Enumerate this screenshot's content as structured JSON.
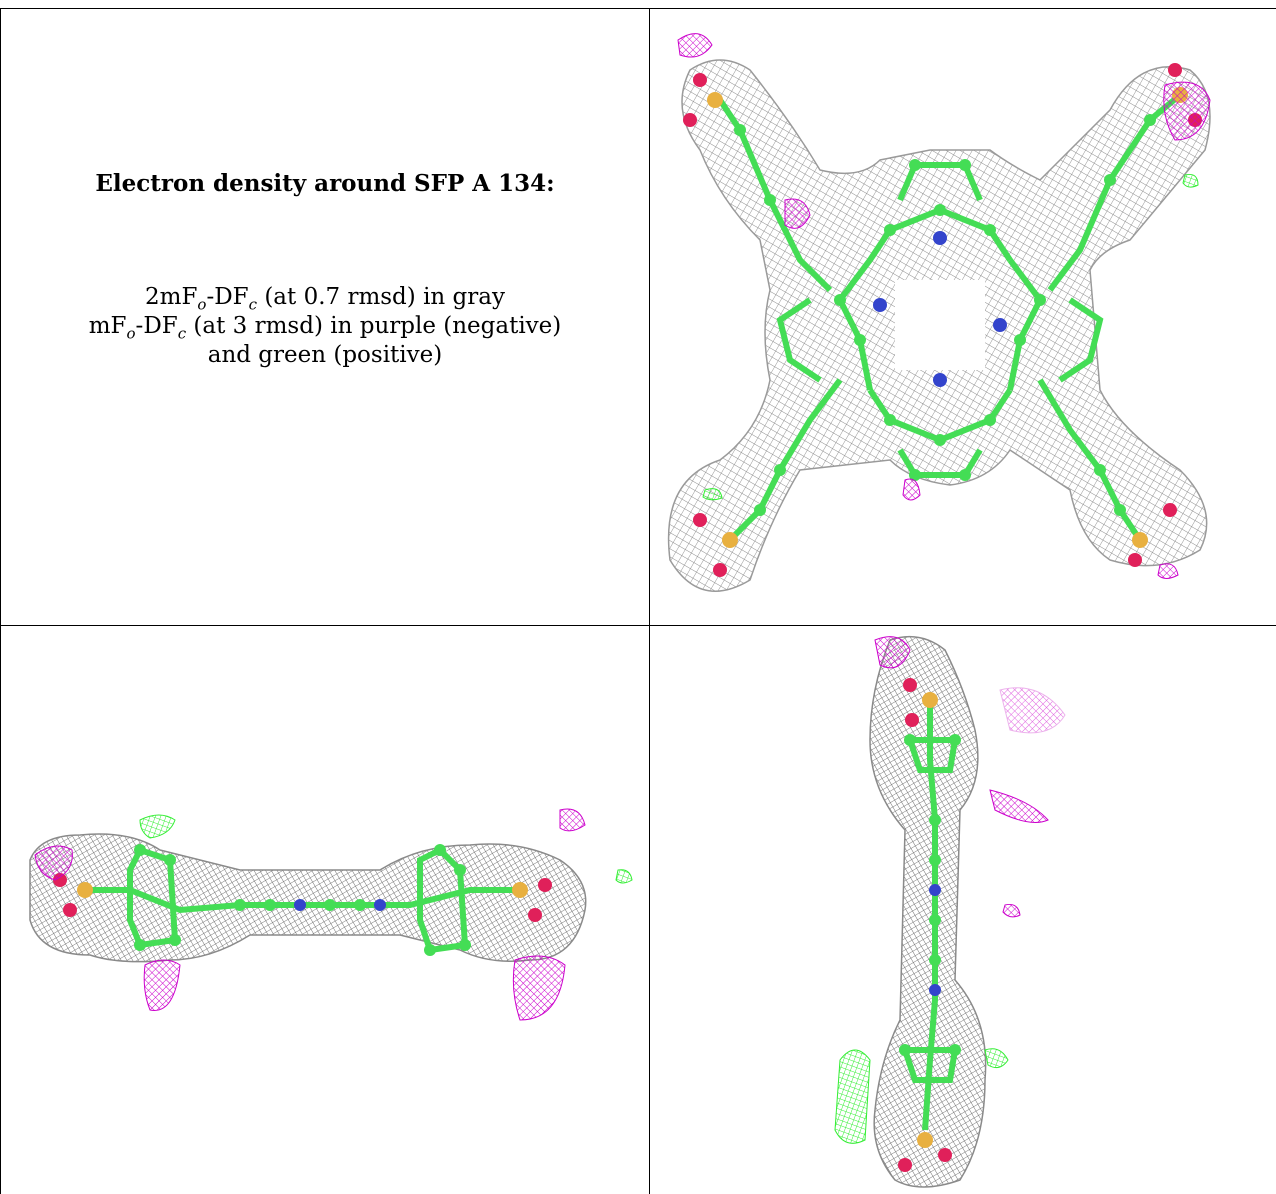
{
  "caption": {
    "title": "Electron density around SFP A 134:",
    "line1_pre": "2mF",
    "line1_sub1": "o",
    "line1_mid": "-DF",
    "line1_sub2": "c",
    "line1_post": " (at 0.7 rmsd) in gray",
    "line2_pre": "mF",
    "line2_sub1": "o",
    "line2_mid": "-DF",
    "line2_sub2": "c",
    "line2_post": " (at 3 rmsd) in purple (negative)",
    "line3": "and green (positive)"
  },
  "colors": {
    "mesh_gray": "#8c8c8c",
    "negative_purple": "#cc00cc",
    "positive_green": "#33ee33",
    "carbon_green": "#44dd55",
    "nitrogen_blue": "#3344cc",
    "oxygen_red": "#e0205a",
    "sulfur_yellow": "#e8b040"
  },
  "panels": [
    {
      "name": "top-view"
    },
    {
      "name": "side-view"
    },
    {
      "name": "end-view"
    }
  ]
}
